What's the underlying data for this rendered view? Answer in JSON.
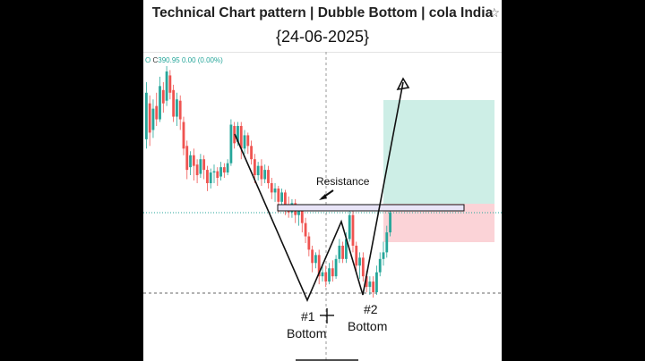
{
  "header": {
    "title": "Technical Chart pattern | Dubble Bottom | cola India",
    "star_icon": "star-outline-icon",
    "date": "{24-06-2025}"
  },
  "ohlc": {
    "open_label": "O",
    "close_label": "C",
    "close_value": "390.95",
    "change": "0.00 (0.00%)"
  },
  "colors": {
    "up": "#26a69a",
    "down": "#ef5350",
    "profit_zone": "#cdeee6",
    "loss_zone": "#fbd3d7",
    "resistance_box": "#e8e4f7"
  },
  "chart_data": {
    "type": "candlestick",
    "annotations": {
      "resistance": "Resistance",
      "bottom1_num": "#1",
      "bottom1_word": "Bottom",
      "bottom2_num": "#2",
      "bottom2_word": "Bottom"
    },
    "candles": [
      [
        0.45,
        0.8,
        0.38,
        0.88
      ],
      [
        0.72,
        0.5,
        0.4,
        0.78
      ],
      [
        0.52,
        0.68,
        0.46,
        0.75
      ],
      [
        0.7,
        0.6,
        0.55,
        0.8
      ],
      [
        0.6,
        0.85,
        0.58,
        0.92
      ],
      [
        0.82,
        0.72,
        0.65,
        0.88
      ],
      [
        0.74,
        0.96,
        0.7,
        1.0
      ],
      [
        0.93,
        0.8,
        0.75,
        0.97
      ],
      [
        0.82,
        0.62,
        0.58,
        0.86
      ],
      [
        0.62,
        0.75,
        0.55,
        0.8
      ],
      [
        0.74,
        0.6,
        0.52,
        0.78
      ],
      [
        0.58,
        0.38,
        0.33,
        0.62
      ],
      [
        0.4,
        0.22,
        0.15,
        0.44
      ],
      [
        0.24,
        0.33,
        0.18,
        0.36
      ],
      [
        0.33,
        0.25,
        0.14,
        0.38
      ],
      [
        0.26,
        0.18,
        0.12,
        0.3
      ],
      [
        0.19,
        0.3,
        0.16,
        0.34
      ],
      [
        0.3,
        0.22,
        0.15,
        0.33
      ],
      [
        0.22,
        0.12,
        0.06,
        0.25
      ],
      [
        0.12,
        0.2,
        0.08,
        0.23
      ],
      [
        0.2,
        0.21,
        0.12,
        0.26
      ],
      [
        0.21,
        0.16,
        0.1,
        0.24
      ],
      [
        0.17,
        0.24,
        0.14,
        0.28
      ],
      [
        0.24,
        0.2,
        0.16,
        0.27
      ],
      [
        0.2,
        0.27,
        0.18,
        0.3
      ],
      [
        0.27,
        0.56,
        0.25,
        0.6
      ],
      [
        0.55,
        0.42,
        0.38,
        0.58
      ],
      [
        0.43,
        0.55,
        0.4,
        0.58
      ],
      [
        0.55,
        0.38,
        0.3,
        0.58
      ],
      [
        0.38,
        0.48,
        0.34,
        0.52
      ],
      [
        0.48,
        0.4,
        0.34,
        0.5
      ],
      [
        0.4,
        0.3,
        0.26,
        0.44
      ],
      [
        0.3,
        0.18,
        0.12,
        0.34
      ],
      [
        0.18,
        0.25,
        0.14,
        0.28
      ],
      [
        0.25,
        0.15,
        0.1,
        0.3
      ],
      [
        0.15,
        0.22,
        0.12,
        0.26
      ],
      [
        0.22,
        0.12,
        0.08,
        0.25
      ],
      [
        0.12,
        0.05,
        0.0,
        0.16
      ],
      [
        0.05,
        0.08,
        -0.02,
        0.12
      ],
      [
        0.08,
        -0.02,
        -0.1,
        0.1
      ],
      [
        -0.02,
        0.05,
        -0.08,
        0.08
      ],
      [
        0.05,
        -0.05,
        -0.12,
        0.07
      ],
      [
        -0.05,
        -0.1,
        -0.14,
        0.02
      ],
      [
        -0.1,
        -0.03,
        -0.14,
        0.0
      ],
      [
        -0.03,
        -0.12,
        -0.18,
        0.0
      ],
      [
        -0.12,
        -0.08,
        -0.2,
        -0.05
      ],
      [
        -0.08,
        -0.18,
        -0.25,
        -0.05
      ],
      [
        -0.18,
        -0.28,
        -0.33,
        -0.14
      ],
      [
        -0.28,
        -0.38,
        -0.43,
        -0.25
      ],
      [
        -0.38,
        -0.48,
        -0.55,
        -0.35
      ],
      [
        -0.48,
        -0.42,
        -0.52,
        -0.4
      ],
      [
        -0.42,
        -0.58,
        -0.64,
        -0.38
      ],
      [
        -0.58,
        -0.55,
        -0.62,
        -0.5
      ],
      [
        -0.55,
        -0.62,
        -0.66,
        -0.5
      ],
      [
        -0.62,
        -0.52,
        -0.64,
        -0.48
      ],
      [
        -0.52,
        -0.58,
        -0.62,
        -0.46
      ],
      [
        -0.58,
        -0.45,
        -0.6,
        -0.42
      ],
      [
        -0.45,
        -0.35,
        -0.48,
        -0.3
      ],
      [
        -0.35,
        -0.45,
        -0.48,
        -0.32
      ],
      [
        -0.45,
        -0.3,
        -0.48,
        -0.25
      ],
      [
        -0.3,
        -0.12,
        -0.32,
        -0.04
      ],
      [
        -0.12,
        -0.35,
        -0.4,
        -0.08
      ],
      [
        -0.35,
        -0.5,
        -0.55,
        -0.32
      ],
      [
        -0.5,
        -0.44,
        -0.6,
        -0.4
      ],
      [
        -0.44,
        -0.58,
        -0.62,
        -0.4
      ],
      [
        -0.58,
        -0.66,
        -0.7,
        -0.54
      ],
      [
        -0.66,
        -0.62,
        -0.72,
        -0.58
      ],
      [
        -0.62,
        -0.7,
        -0.74,
        -0.58
      ],
      [
        -0.7,
        -0.55,
        -0.72,
        -0.5
      ],
      [
        -0.55,
        -0.45,
        -0.58,
        -0.4
      ],
      [
        -0.45,
        -0.4,
        -0.5,
        -0.32
      ],
      [
        -0.4,
        -0.25,
        -0.44,
        -0.2
      ],
      [
        -0.25,
        -0.1,
        -0.28,
        -0.06
      ]
    ]
  }
}
